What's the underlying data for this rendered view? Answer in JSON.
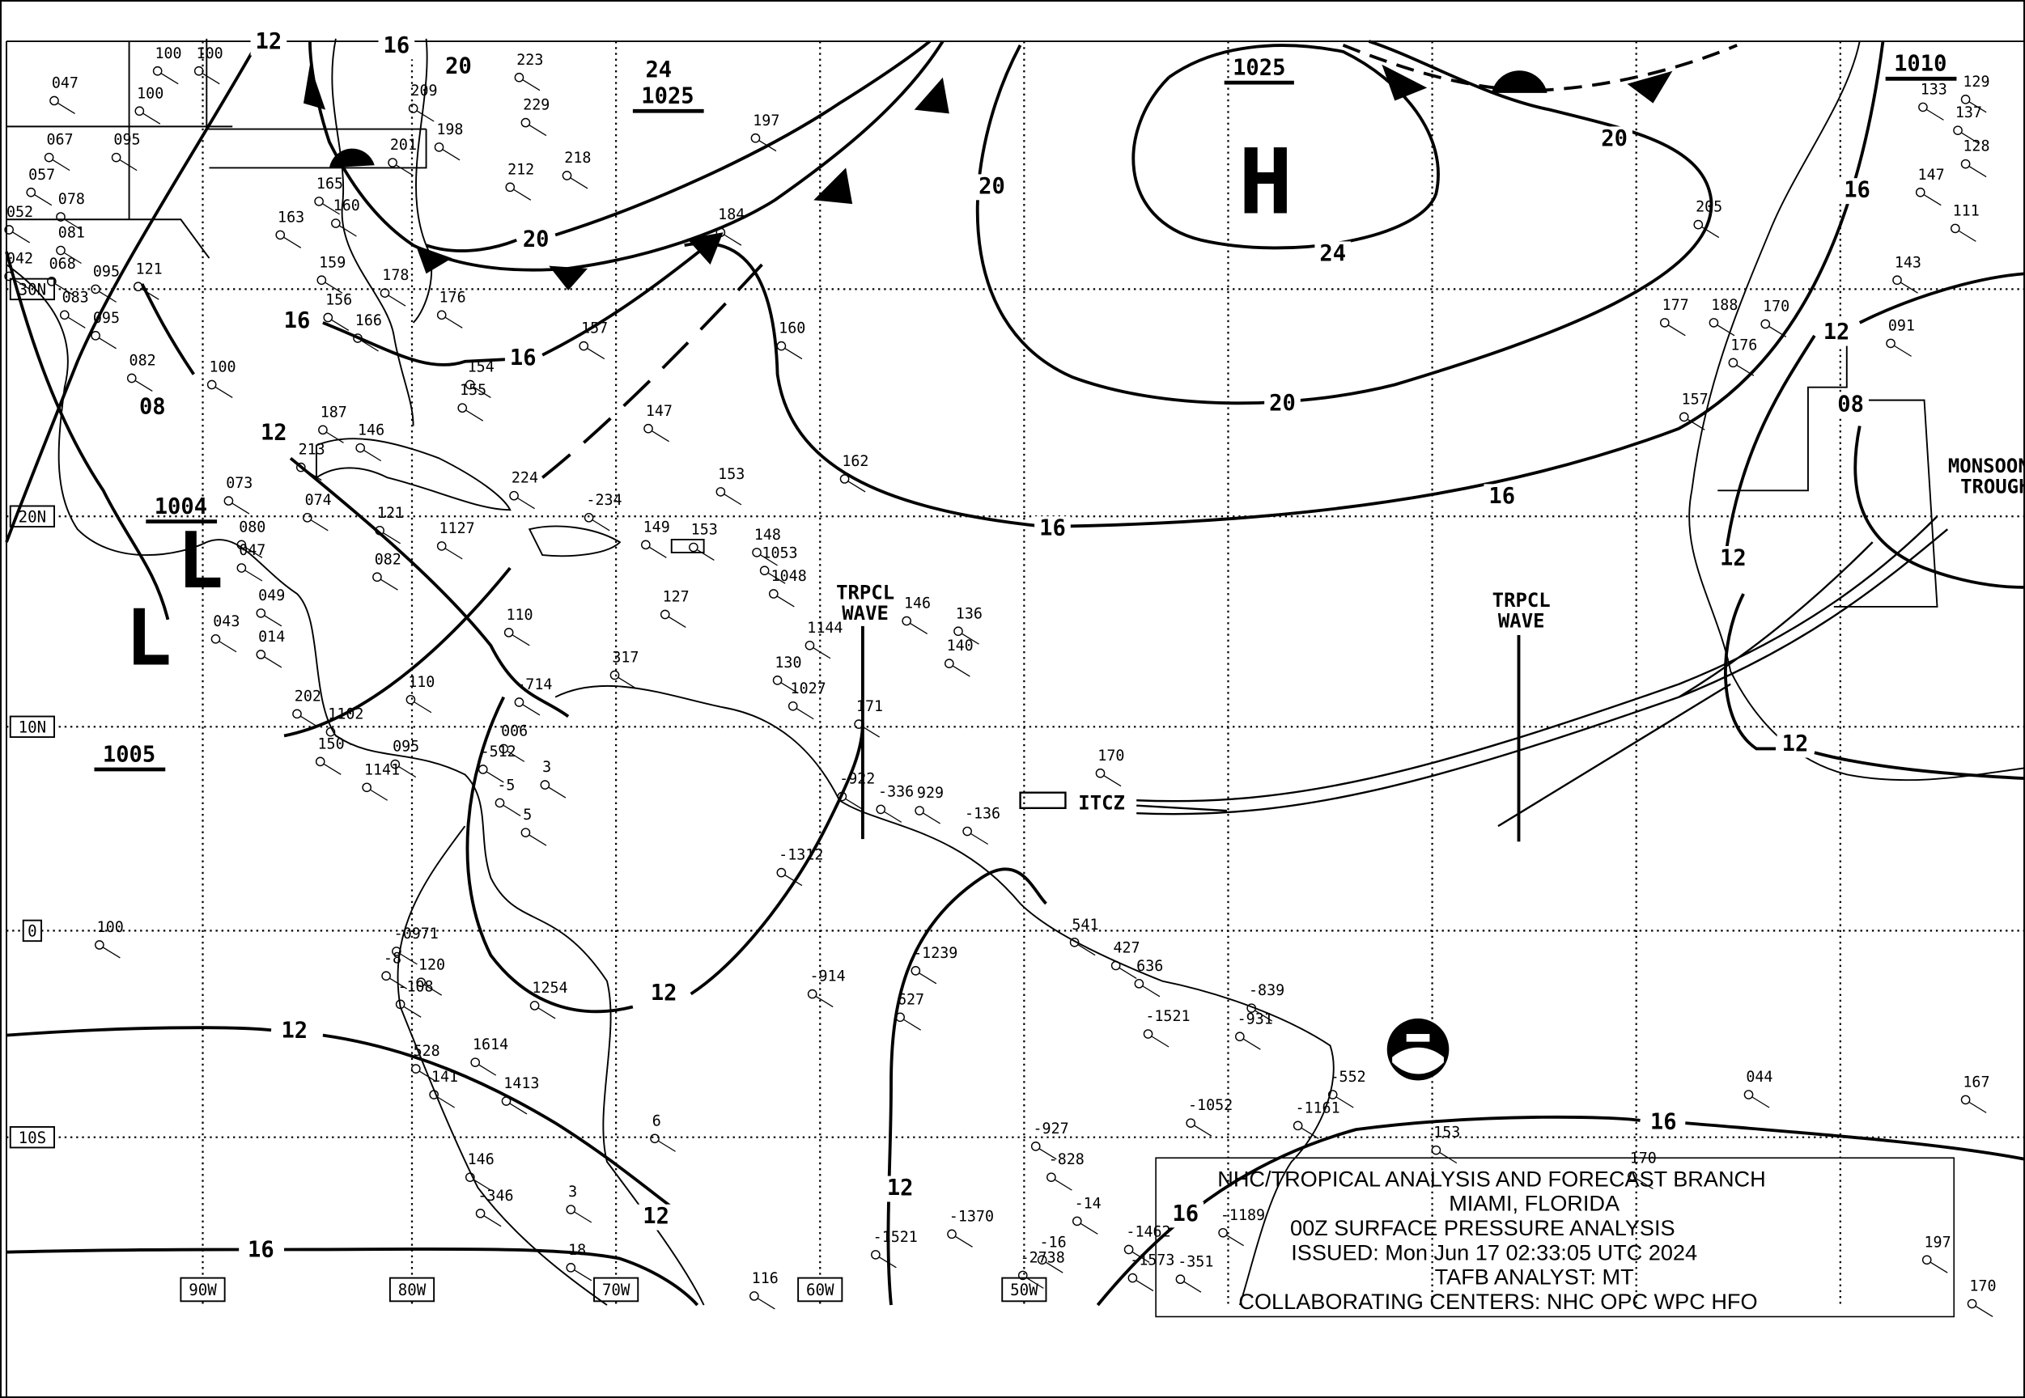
{
  "title_block": {
    "lines": [
      "NHC/TROPICAL ANALYSIS AND FORECAST BRANCH",
      "MIAMI, FLORIDA",
      "00Z SURFACE PRESSURE ANALYSIS",
      "ISSUED: Mon Jun 17 02:33:05 UTC 2024",
      "TAFB ANALYST: MT",
      "COLLABORATING CENTERS: NHC OPC WPC HFO"
    ]
  },
  "grid_labels": {
    "latitudes": [
      "30N",
      "20N",
      "10N",
      "0",
      "10S"
    ],
    "longitudes": [
      "90W",
      "80W",
      "70W",
      "60W",
      "50W"
    ]
  },
  "pressure_centers": [
    {
      "type": "H",
      "value": "1025"
    },
    {
      "type": "L",
      "value": "1004"
    },
    {
      "type": "L",
      "value": ""
    }
  ],
  "pressure_values": [
    "1025",
    "1010",
    "1005"
  ],
  "isobar_labels": [
    "12",
    "16",
    "20",
    "20",
    "16",
    "16",
    "08",
    "12",
    "20",
    "24",
    "20",
    "20",
    "16",
    "16",
    "16",
    "12",
    "08",
    "12",
    "12",
    "12",
    "12",
    "12",
    "12",
    "16",
    "16",
    "16",
    "24"
  ],
  "features": {
    "tropical_wave_1": [
      "TRPCL",
      "WAVE"
    ],
    "tropical_wave_2": [
      "TRPCL",
      "WAVE"
    ],
    "itcz": "ITCZ",
    "monsoon_trough": [
      "MONSOON",
      "TROUGH"
    ]
  },
  "stations": [
    "100",
    "100",
    "047",
    "100",
    "067",
    "095",
    "057",
    "078",
    "052",
    "081",
    "042",
    "068",
    "095",
    "121",
    "083",
    "095",
    "082",
    "100",
    "187",
    "213",
    "146",
    "074",
    "121",
    "1127",
    "082",
    "110",
    "110",
    "153",
    "162",
    "147",
    "218",
    "212",
    "184",
    "160",
    "157",
    "197",
    "127",
    "146",
    "140",
    "136",
    "171",
    "170",
    "205",
    "177",
    "188",
    "170",
    "176",
    "157",
    "091",
    "133",
    "129",
    "137",
    "128",
    "147",
    "111",
    "143",
    "044",
    "167",
    "197",
    "153",
    "170",
    "-552",
    "-1161",
    "-1052",
    "-839",
    "-931",
    "-1521",
    "427",
    "636",
    "541",
    "627",
    "-914",
    "-1239",
    "-1312",
    "929",
    "-136",
    "-336",
    "-922",
    "1027",
    "130",
    "317",
    "-714",
    "006",
    "-512",
    "1254",
    "1614",
    "1413",
    "141",
    "528",
    "146",
    "-346",
    "3",
    "116",
    "-1370",
    "-1521",
    "-927",
    "-828",
    "-14",
    "-16",
    "-1462",
    "-1573",
    "-351",
    "-2738",
    "-1189",
    "229",
    "223",
    "209",
    "198",
    "201",
    "165",
    "160",
    "163",
    "159",
    "156",
    "166",
    "154",
    "155",
    "178",
    "176",
    "224",
    "-234",
    "149",
    "153",
    "148",
    "1053",
    "1048",
    "1144",
    "073",
    "080",
    "047",
    "049",
    "043",
    "014",
    "202",
    "1102",
    "150",
    "095",
    "1141",
    "-5",
    "5",
    "3",
    "100",
    "-0971",
    "-8",
    "120",
    "-108",
    "6",
    "18",
    "170"
  ],
  "colors": {
    "ink": "#000000",
    "background": "#ffffff"
  }
}
